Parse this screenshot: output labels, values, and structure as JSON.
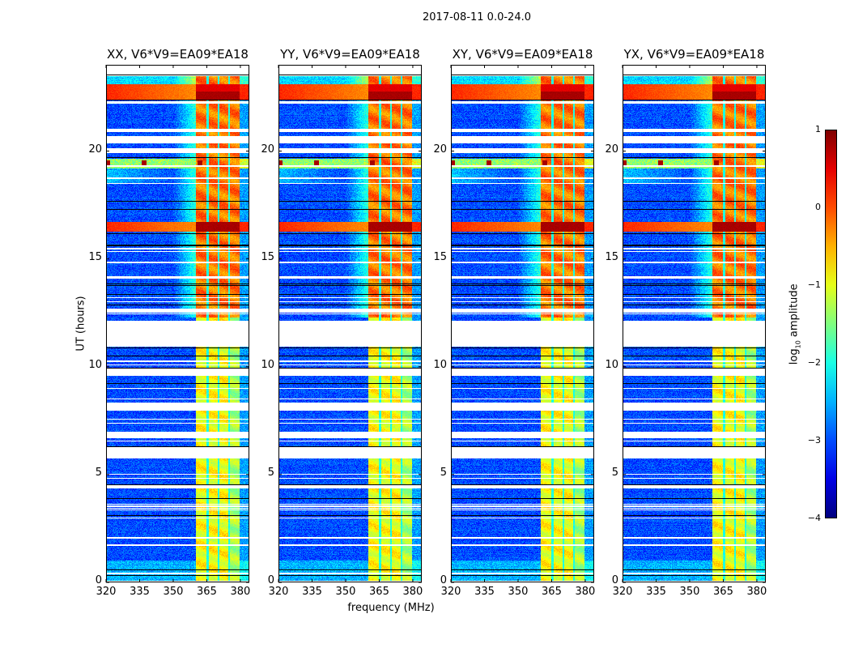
{
  "suptitle": "2017-08-11 0.0-24.0",
  "colors": {
    "flag": "#ffffff",
    "line": "#000000"
  },
  "chart_data": {
    "type": "heatmap",
    "colormap": "jet",
    "xlabel": "frequency (MHz)",
    "ylabel": "UT (hours)",
    "xlim": [
      320,
      384
    ],
    "ylim": [
      0,
      24
    ],
    "xticks": [
      320,
      335,
      350,
      365,
      380
    ],
    "yticks": [
      0,
      5,
      10,
      15,
      20
    ],
    "panels": [
      {
        "title": "XX, V6*V9=EA09*EA18",
        "seed": 1
      },
      {
        "title": "YY, V6*V9=EA09*EA18",
        "seed": 2
      },
      {
        "title": "XY, V6*V9=EA09*EA18",
        "seed": 3
      },
      {
        "title": "YX, V6*V9=EA09*EA18",
        "seed": 4
      }
    ],
    "colorbar": {
      "label": "log10 amplitude",
      "range": [
        -4,
        1
      ],
      "ticks": [
        1,
        0,
        -1,
        -2,
        -3,
        -4
      ]
    },
    "background_level": -3.0,
    "rfi_band_mhz": [
      360.2,
      379.6
    ],
    "rfi_notches_mhz": [
      365.3,
      370.3,
      375.0
    ],
    "rfi_level_upper": -0.2,
    "rfi_level_lower": -0.9,
    "strong_bands_hours": [
      [
        16.25,
        16.7,
        0.8
      ],
      [
        22.4,
        22.75,
        0.8
      ],
      [
        22.75,
        23.1,
        0.5
      ]
    ],
    "broadband_streak_hours": [
      19.2,
      19.65
    ],
    "flagged_intervals_hours": [
      [
        23.48,
        24.0
      ],
      [
        22.2,
        22.3
      ],
      [
        20.9,
        21.05
      ],
      [
        20.35,
        20.7
      ],
      [
        19.9,
        20.15
      ],
      [
        19.28,
        19.33
      ],
      [
        18.72,
        18.78
      ],
      [
        18.47,
        18.53
      ],
      [
        15.44,
        15.5
      ],
      [
        15.32,
        15.38
      ],
      [
        14.8,
        14.86
      ],
      [
        14.1,
        14.2
      ],
      [
        13.17,
        13.22
      ],
      [
        12.98,
        13.03
      ],
      [
        12.5,
        12.7
      ],
      [
        12.44,
        12.48
      ],
      [
        10.94,
        12.13
      ],
      [
        10.23,
        10.29
      ],
      [
        10.05,
        10.1
      ],
      [
        9.59,
        9.96
      ],
      [
        8.97,
        9.03
      ],
      [
        8.47,
        8.53
      ],
      [
        7.98,
        8.35
      ],
      [
        7.55,
        7.6
      ],
      [
        7.36,
        7.41
      ],
      [
        6.7,
        6.97
      ],
      [
        6.52,
        6.58
      ],
      [
        5.73,
        6.3
      ],
      [
        5.0,
        5.05
      ],
      [
        4.81,
        4.86
      ],
      [
        4.34,
        4.53
      ],
      [
        3.6,
        3.65
      ],
      [
        3.5,
        3.55
      ],
      [
        3.42,
        3.46
      ],
      [
        3.33,
        3.37
      ],
      [
        2.98,
        3.02
      ],
      [
        2.04,
        2.09
      ],
      [
        1.7,
        1.75
      ],
      [
        0.39,
        0.44
      ],
      [
        0.05,
        0.09
      ]
    ],
    "black_lines_hours": [
      23.55,
      22.38,
      19.7,
      17.7,
      17.3,
      16.2,
      15.65,
      15.62,
      13.85,
      13.8,
      13.37,
      12.9,
      10.9,
      10.5,
      9.96,
      9.25,
      6.3,
      4.55,
      3.9,
      3.1,
      0.6,
      0.35
    ]
  }
}
